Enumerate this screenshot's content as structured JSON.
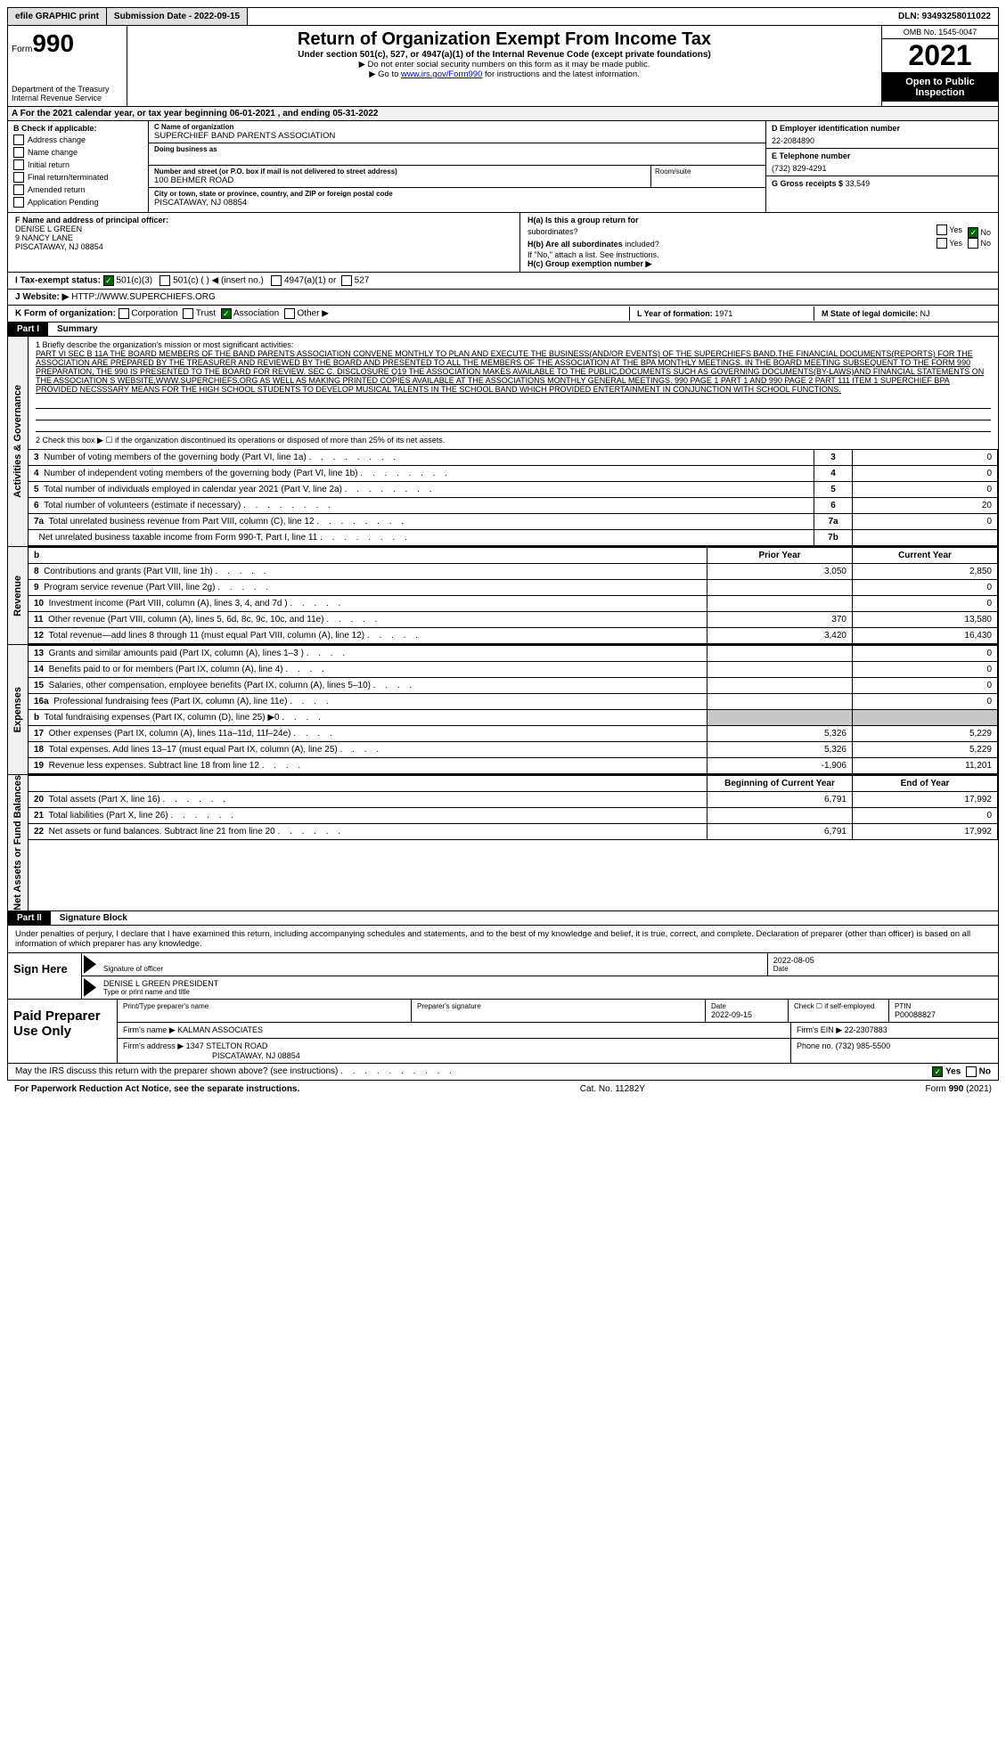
{
  "topbar": {
    "efile": "efile GRAPHIC print",
    "submission_date_label": "Submission Date - 2022-09-15",
    "dln": "DLN: 93493258011022"
  },
  "header": {
    "form_label": "Form",
    "form_num": "990",
    "dept": "Department of the Treasury",
    "irs": "Internal Revenue Service",
    "title": "Return of Organization Exempt From Income Tax",
    "subtitle": "Under section 501(c), 527, or 4947(a)(1) of the Internal Revenue Code (except private foundations)",
    "hint1": "▶ Do not enter social security numbers on this form as it may be made public.",
    "hint2_pre": "▶ Go to ",
    "hint2_link": "www.irs.gov/Form990",
    "hint2_post": " for instructions and the latest information.",
    "omb": "OMB No. 1545-0047",
    "year": "2021",
    "inspect1": "Open to Public",
    "inspect2": "Inspection"
  },
  "rowA": "A   For the 2021 calendar year, or tax year beginning 06-01-2021   , and ending 05-31-2022",
  "boxB": {
    "label": "B Check if applicable:",
    "items": [
      "Address change",
      "Name change",
      "Initial return",
      "Final return/terminated",
      "Amended return",
      "Application Pending"
    ]
  },
  "boxC": {
    "name_label": "C Name of organization",
    "name": "SUPERCHIEF BAND PARENTS ASSOCIATION",
    "dba_label": "Doing business as",
    "addr_label": "Number and street (or P.O. box if mail is not delivered to street address)",
    "addr": "100 BEHMER ROAD",
    "room_label": "Room/suite",
    "city_label": "City or town, state or province, country, and ZIP or foreign postal code",
    "city": "PISCATAWAY, NJ  08854"
  },
  "boxD": {
    "label": "D Employer identification number",
    "value": "22-2084890"
  },
  "boxE": {
    "label": "E Telephone number",
    "value": "(732) 829-4291"
  },
  "boxG": {
    "label": "G Gross receipts $",
    "value": "33,549"
  },
  "boxF": {
    "label": "F  Name and address of principal officer:",
    "name": "DENISE L GREEN",
    "addr1": "9 NANCY LANE",
    "addr2": "PISCATAWAY, NJ  08854"
  },
  "boxH": {
    "ha_label": "H(a)  Is this a group return for",
    "ha_label2": "subordinates?",
    "hb_label": "H(b)  Are all subordinates",
    "hb_label2": "included?",
    "hb_note": "If \"No,\" attach a list. See instructions.",
    "hc_label": "H(c)  Group exemption number ▶",
    "yes": "Yes",
    "no": "No"
  },
  "rowI": {
    "label": "I     Tax-exempt status:",
    "o1": "501(c)(3)",
    "o2": "501(c) (   ) ◀ (insert no.)",
    "o3": "4947(a)(1) or",
    "o4": "527"
  },
  "rowJ": {
    "label": "J    Website: ▶",
    "value": "HTTP://WWW.SUPERCHIEFS.ORG"
  },
  "rowK": {
    "label": "K Form of organization:",
    "o1": "Corporation",
    "o2": "Trust",
    "o3": "Association",
    "o4": "Other ▶"
  },
  "rowL": {
    "label": "L Year of formation:",
    "value": "1971"
  },
  "rowM": {
    "label": "M State of legal domicile:",
    "value": "NJ"
  },
  "part1": {
    "header": "Part I",
    "title": "Summary",
    "side_act": "Activities & Governance",
    "side_rev": "Revenue",
    "side_exp": "Expenses",
    "side_net": "Net Assets or Fund Balances",
    "line1_label": "1   Briefly describe the organization's mission or most significant activities:",
    "line1_text": "PART VI SEC B 11A THE BOARD MEMBERS OF THE BAND PARENTS ASSOCIATION CONVENE MONTHLY TO PLAN AND EXECUTE THE BUSINESS(AND/OR EVENTS) OF THE SUPERCHIEFS BAND.THE FINANCIAL DOCUMENTS(REPORTS) FOR THE ASSOCIATION ARE PREPARED BY THE TREASURER AND REVIEWED BY THE BOARD AND PRESENTED TO ALL THE MEMBERS OF THE ASSOCIATION AT THE BPA MONTHLY MEETINGS. IN THE BOARD MEETING SUBSEQUENT TO THE FORM 990 PREPARATION, THE 990 IS PRESENTED TO THE BOARD FOR REVIEW. SEC C. DISCLOSURE Q19 THE ASSOCIATION MAKES AVAILABLE TO THE PUBLIC,DOCUMENTS SUCH AS GOVERNING DOCUMENTS(BY-LAWS)AND FINANCIAL STATEMENTS ON THE ASSOCIATION S WEBSITE,WWW.SUPERCHIEFS.ORG AS WELL AS MAKING PRINTED COPIES AVAILABLE AT THE ASSOCIATIONS MONTHLY GENERAL MEETINGS. 990 PAGE 1 PART 1 AND 990 PAGE 2 PART 111 ITEM 1 SUPERCHIEF BPA PROVIDED NECSSSARY MEANS FOR THE HIGH SCHOOL STUDENTS TO DEVELOP MUSICAL TALENTS IN THE SCHOOL BAND WHICH PROVIDED ENTERTAINMENT IN CONJUNCTION WITH SCHOOL FUNCTIONS.",
    "line2": "2   Check this box ▶ ☐  if the organization discontinued its operations or disposed of more than 25% of its net assets.",
    "rows_gov": [
      {
        "n": "3",
        "d": "Number of voting members of the governing body (Part VI, line 1a)",
        "box": "3",
        "v": "0"
      },
      {
        "n": "4",
        "d": "Number of independent voting members of the governing body (Part VI, line 1b)",
        "box": "4",
        "v": "0"
      },
      {
        "n": "5",
        "d": "Total number of individuals employed in calendar year 2021 (Part V, line 2a)",
        "box": "5",
        "v": "0"
      },
      {
        "n": "6",
        "d": "Total number of volunteers (estimate if necessary)",
        "box": "6",
        "v": "20"
      },
      {
        "n": "7a",
        "d": "Total unrelated business revenue from Part VIII, column (C), line 12",
        "box": "7a",
        "v": "0"
      },
      {
        "n": "",
        "d": "Net unrelated business taxable income from Form 990-T, Part I, line 11",
        "box": "7b",
        "v": ""
      }
    ],
    "py": "Prior Year",
    "cy": "Current Year",
    "rows_rev": [
      {
        "n": "8",
        "d": "Contributions and grants (Part VIII, line 1h)",
        "py": "3,050",
        "cy": "2,850"
      },
      {
        "n": "9",
        "d": "Program service revenue (Part VIII, line 2g)",
        "py": "",
        "cy": "0"
      },
      {
        "n": "10",
        "d": "Investment income (Part VIII, column (A), lines 3, 4, and 7d )",
        "py": "",
        "cy": "0"
      },
      {
        "n": "11",
        "d": "Other revenue (Part VIII, column (A), lines 5, 6d, 8c, 9c, 10c, and 11e)",
        "py": "370",
        "cy": "13,580"
      },
      {
        "n": "12",
        "d": "Total revenue—add lines 8 through 11 (must equal Part VIII, column (A), line 12)",
        "py": "3,420",
        "cy": "16,430"
      }
    ],
    "rows_exp": [
      {
        "n": "13",
        "d": "Grants and similar amounts paid (Part IX, column (A), lines 1–3 )",
        "py": "",
        "cy": "0"
      },
      {
        "n": "14",
        "d": "Benefits paid to or for members (Part IX, column (A), line 4)",
        "py": "",
        "cy": "0"
      },
      {
        "n": "15",
        "d": "Salaries, other compensation, employee benefits (Part IX, column (A), lines 5–10)",
        "py": "",
        "cy": "0"
      },
      {
        "n": "16a",
        "d": "Professional fundraising fees (Part IX, column (A), line 11e)",
        "py": "",
        "cy": "0"
      },
      {
        "n": "b",
        "d": "Total fundraising expenses (Part IX, column (D), line 25) ▶0",
        "py": "grey",
        "cy": "grey"
      },
      {
        "n": "17",
        "d": "Other expenses (Part IX, column (A), lines 11a–11d, 11f–24e)",
        "py": "5,326",
        "cy": "5,229"
      },
      {
        "n": "18",
        "d": "Total expenses. Add lines 13–17 (must equal Part IX, column (A), line 25)",
        "py": "5,326",
        "cy": "5,229"
      },
      {
        "n": "19",
        "d": "Revenue less expenses. Subtract line 18 from line 12",
        "py": "-1,906",
        "cy": "11,201"
      }
    ],
    "by": "Beginning of Current Year",
    "ey": "End of Year",
    "rows_net": [
      {
        "n": "20",
        "d": "Total assets (Part X, line 16)",
        "py": "6,791",
        "cy": "17,992"
      },
      {
        "n": "21",
        "d": "Total liabilities (Part X, line 26)",
        "py": "",
        "cy": "0"
      },
      {
        "n": "22",
        "d": "Net assets or fund balances. Subtract line 21 from line 20",
        "py": "6,791",
        "cy": "17,992"
      }
    ]
  },
  "part2": {
    "header": "Part II",
    "title": "Signature Block",
    "decl": "Under penalties of perjury, I declare that I have examined this return, including accompanying schedules and statements, and to the best of my knowledge and belief, it is true, correct, and complete. Declaration of preparer (other than officer) is based on all information of which preparer has any knowledge.",
    "sign_here": "Sign Here",
    "sig_label": "Signature of officer",
    "date_label": "Date",
    "date": "2022-08-05",
    "name_title": "DENISE L GREEN  PRESIDENT",
    "type_label": "Type or print name and title",
    "paid": "Paid Preparer Use Only",
    "prep_name_label": "Print/Type preparer's name",
    "prep_sig_label": "Preparer's signature",
    "prep_date_label": "Date",
    "prep_date": "2022-09-15",
    "check_label": "Check ☐ if self-employed",
    "ptin_label": "PTIN",
    "ptin": "P00088827",
    "firm_name_label": "Firm's name     ▶",
    "firm_name": "KALMAN ASSOCIATES",
    "firm_ein_label": "Firm's EIN ▶",
    "firm_ein": "22-2307883",
    "firm_addr_label": "Firm's address ▶",
    "firm_addr": "1347 STELTON ROAD",
    "firm_city": "PISCATAWAY, NJ  08854",
    "phone_label": "Phone no.",
    "phone": "(732) 985-5500",
    "discuss": "May the IRS discuss this return with the preparer shown above? (see instructions)",
    "yes": "Yes",
    "no": "No"
  },
  "footer": {
    "left": "For Paperwork Reduction Act Notice, see the separate instructions.",
    "mid": "Cat. No. 11282Y",
    "right": "Form 990 (2021)"
  },
  "colors": {
    "black": "#000000",
    "green_check": "#006400",
    "grey_bg": "#c8c8c8",
    "link": "#0000cc"
  }
}
